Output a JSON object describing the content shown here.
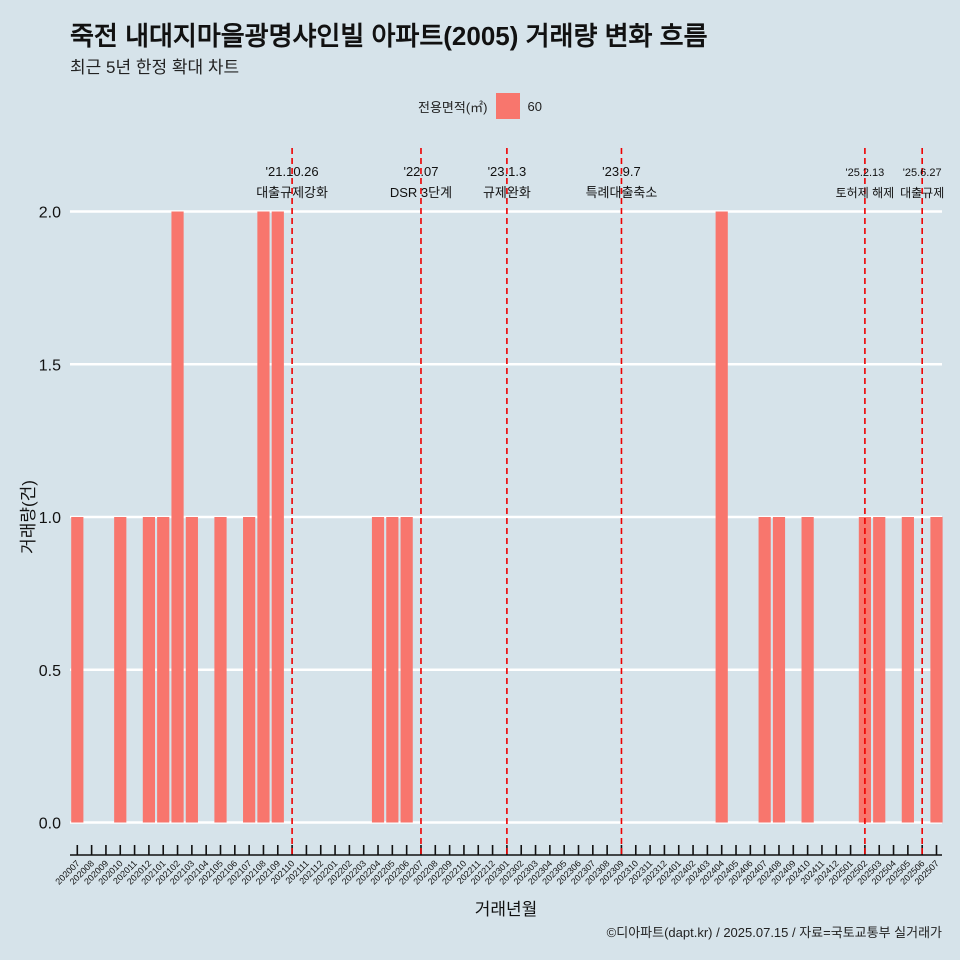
{
  "title": "죽전 내대지마을광명샤인빌 아파트(2005) 거래량 변화 흐름",
  "subtitle": "최근 5년 한정 확대 차트",
  "legend": {
    "title": "전용면적(㎡)",
    "label": "60"
  },
  "caption": "©디아파트(dapt.kr) / 2025.07.15 / 자료=국토교통부 실거래가",
  "colors": {
    "background": "#d6e3ea",
    "bar": "#f8766d",
    "event_line": "#ee0000",
    "grid": "#ffffff"
  },
  "chart_data": {
    "type": "bar",
    "xlabel": "거래년월",
    "ylabel": "거래량(건)",
    "ylim": [
      0,
      2
    ],
    "yticks": [
      "0.0",
      "0.5",
      "1.0",
      "1.5",
      "2.0"
    ],
    "categories": [
      "202007",
      "202008",
      "202009",
      "202010",
      "202011",
      "202012",
      "202101",
      "202102",
      "202103",
      "202104",
      "202105",
      "202106",
      "202107",
      "202108",
      "202109",
      "202110",
      "202111",
      "202112",
      "202201",
      "202202",
      "202203",
      "202204",
      "202205",
      "202206",
      "202207",
      "202208",
      "202209",
      "202210",
      "202211",
      "202212",
      "202301",
      "202302",
      "202303",
      "202304",
      "202305",
      "202306",
      "202307",
      "202308",
      "202309",
      "202310",
      "202311",
      "202312",
      "202401",
      "202402",
      "202403",
      "202404",
      "202405",
      "202406",
      "202407",
      "202408",
      "202409",
      "202410",
      "202411",
      "202412",
      "202501",
      "202502",
      "202503",
      "202504",
      "202505",
      "202506",
      "202507"
    ],
    "series": [
      {
        "name": "60",
        "values": [
          1,
          0,
          0,
          1,
          0,
          1,
          1,
          2,
          1,
          0,
          1,
          0,
          1,
          2,
          2,
          0,
          0,
          0,
          0,
          0,
          0,
          1,
          1,
          1,
          0,
          0,
          0,
          0,
          0,
          0,
          0,
          0,
          0,
          0,
          0,
          0,
          0,
          0,
          0,
          0,
          0,
          0,
          0,
          0,
          0,
          2,
          0,
          0,
          1,
          1,
          0,
          1,
          0,
          0,
          0,
          1,
          1,
          0,
          1,
          0,
          1
        ]
      }
    ],
    "events": [
      {
        "x": "202110",
        "date": "'21.10.26",
        "label": "대출규제강화"
      },
      {
        "x": "202207",
        "date": "'22.07",
        "label": "DSR 3단계"
      },
      {
        "x": "202301",
        "date": "'23.1.3",
        "label": "규제완화"
      },
      {
        "x": "202309",
        "date": "'23.9.7",
        "label": "특례대출축소"
      },
      {
        "x": "202502",
        "date": "'25.2.13",
        "label": "토허제 해제"
      },
      {
        "x": "202506",
        "date": "'25.6.27",
        "label": "대출규제"
      }
    ],
    "grid": true,
    "legend_position": "top"
  }
}
